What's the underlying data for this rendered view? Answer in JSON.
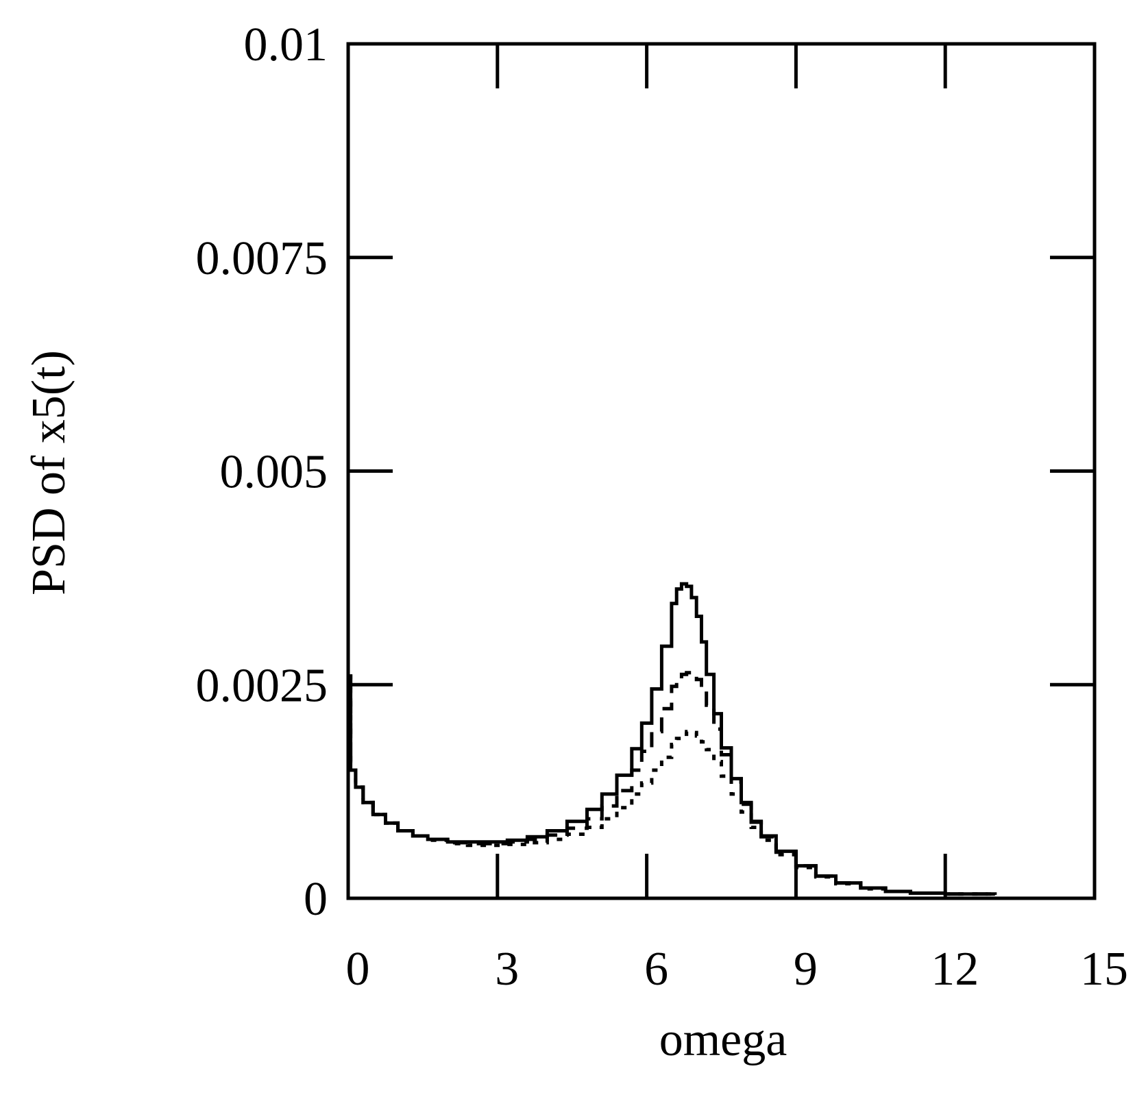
{
  "chart_data": {
    "type": "line",
    "title": "",
    "xlabel": "omega",
    "ylabel": "PSD of x5(t)",
    "xlim": [
      0,
      15
    ],
    "ylim": [
      0,
      0.01
    ],
    "x_ticks": [
      0,
      3,
      6,
      9,
      12,
      15
    ],
    "x_tick_labels": [
      "0",
      "3",
      "6",
      "9",
      "12",
      "15"
    ],
    "y_ticks": [
      0,
      0.0025,
      0.005,
      0.0075,
      0.01
    ],
    "y_tick_labels": [
      "0",
      "0.0025",
      "0.005",
      "0.0075",
      "0.01"
    ],
    "grid": false,
    "legend": null,
    "series": [
      {
        "name": "solid",
        "style": "solid",
        "x": [
          0,
          0.05,
          0.15,
          0.3,
          0.5,
          0.75,
          1.0,
          1.3,
          1.6,
          2.0,
          2.4,
          2.8,
          3.2,
          3.6,
          4.0,
          4.4,
          4.8,
          5.1,
          5.4,
          5.7,
          5.9,
          6.1,
          6.3,
          6.5,
          6.6,
          6.7,
          6.8,
          6.9,
          7.0,
          7.1,
          7.2,
          7.35,
          7.5,
          7.7,
          7.9,
          8.1,
          8.3,
          8.6,
          9.0,
          9.4,
          9.8,
          10.3,
          10.8,
          11.3,
          12.0,
          13.0
        ],
        "y": [
          0.0026,
          0.0015,
          0.0013,
          0.00112,
          0.00098,
          0.00088,
          0.00079,
          0.00073,
          0.00069,
          0.00066,
          0.00066,
          0.00066,
          0.00068,
          0.00072,
          0.00079,
          0.0009,
          0.00104,
          0.00122,
          0.00144,
          0.00175,
          0.00205,
          0.00245,
          0.00295,
          0.00345,
          0.00362,
          0.00368,
          0.00365,
          0.00352,
          0.0033,
          0.003,
          0.00262,
          0.00216,
          0.00176,
          0.0014,
          0.00112,
          0.0009,
          0.00073,
          0.00055,
          0.00038,
          0.00026,
          0.00018,
          0.00012,
          8e-05,
          6e-05,
          5e-05,
          4e-05
        ]
      },
      {
        "name": "dashed",
        "style": "dashed",
        "x": [
          0,
          0.05,
          0.15,
          0.3,
          0.5,
          0.75,
          1.0,
          1.3,
          1.6,
          2.0,
          2.4,
          2.8,
          3.2,
          3.6,
          4.0,
          4.4,
          4.8,
          5.1,
          5.4,
          5.7,
          5.9,
          6.1,
          6.3,
          6.5,
          6.6,
          6.7,
          6.8,
          6.9,
          7.0,
          7.1,
          7.2,
          7.35,
          7.5,
          7.7,
          7.9,
          8.1,
          8.3,
          8.6,
          9.0,
          9.4,
          9.8,
          10.3,
          10.8,
          11.3,
          12.0,
          13.0
        ],
        "y": [
          0.0026,
          0.0015,
          0.0013,
          0.00112,
          0.00098,
          0.00088,
          0.00079,
          0.00073,
          0.00069,
          0.00065,
          0.00064,
          0.00064,
          0.00066,
          0.00069,
          0.00074,
          0.00082,
          0.00093,
          0.00108,
          0.00126,
          0.0015,
          0.00172,
          0.00195,
          0.00222,
          0.00248,
          0.00256,
          0.00262,
          0.00264,
          0.00262,
          0.00256,
          0.00244,
          0.00226,
          0.00198,
          0.00168,
          0.00136,
          0.0011,
          0.00089,
          0.00072,
          0.00054,
          0.00038,
          0.00026,
          0.00018,
          0.00012,
          8e-05,
          6e-05,
          5e-05,
          4e-05
        ]
      },
      {
        "name": "dotted",
        "style": "dotted",
        "x": [
          0,
          0.05,
          0.15,
          0.3,
          0.5,
          0.75,
          1.0,
          1.3,
          1.6,
          2.0,
          2.4,
          2.8,
          3.2,
          3.6,
          4.0,
          4.4,
          4.8,
          5.1,
          5.4,
          5.7,
          5.9,
          6.1,
          6.3,
          6.5,
          6.6,
          6.7,
          6.8,
          6.9,
          7.0,
          7.1,
          7.2,
          7.35,
          7.5,
          7.7,
          7.9,
          8.1,
          8.3,
          8.6,
          9.0,
          9.4,
          9.8,
          10.3,
          10.8,
          11.3,
          12.0,
          13.0
        ],
        "y": [
          0.0026,
          0.0015,
          0.0013,
          0.00112,
          0.00098,
          0.00088,
          0.00079,
          0.00073,
          0.00068,
          0.00064,
          0.00062,
          0.00062,
          0.00063,
          0.00065,
          0.00069,
          0.00075,
          0.00083,
          0.00093,
          0.00106,
          0.00122,
          0.00135,
          0.0015,
          0.00165,
          0.0018,
          0.00187,
          0.00192,
          0.00195,
          0.00194,
          0.0019,
          0.00183,
          0.00174,
          0.0016,
          0.00143,
          0.00122,
          0.00101,
          0.00083,
          0.00068,
          0.00051,
          0.00036,
          0.00025,
          0.00017,
          0.00011,
          8e-05,
          6e-05,
          5e-05,
          4e-05
        ]
      }
    ]
  }
}
